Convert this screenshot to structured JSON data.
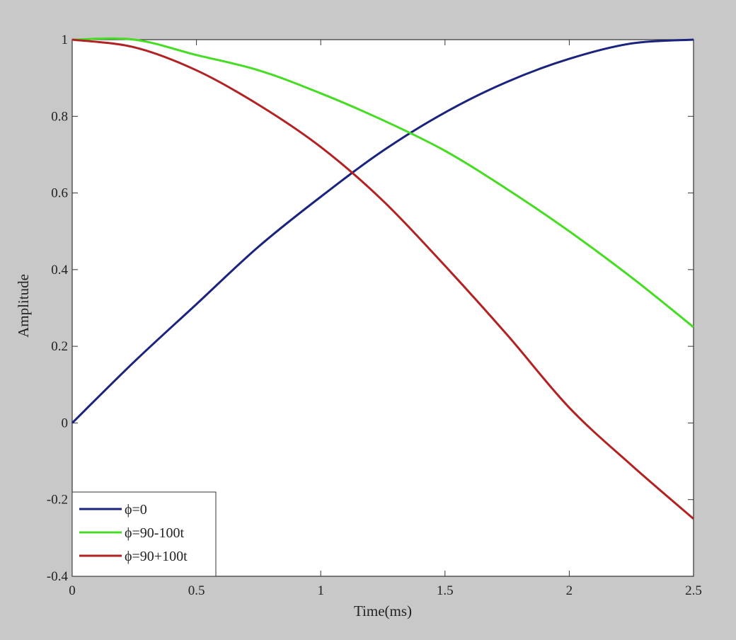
{
  "chart_data": {
    "type": "line",
    "title": "",
    "xlabel": "Time(ms)",
    "ylabel": "Amplitude",
    "xlim": [
      0,
      2.5
    ],
    "ylim": [
      -0.4,
      1
    ],
    "xticks": [
      0,
      0.5,
      1,
      1.5,
      2,
      2.5
    ],
    "xtick_labels": [
      "0",
      "0.5",
      "1",
      "1.5",
      "2",
      "2.5"
    ],
    "yticks": [
      -0.4,
      -0.2,
      0,
      0.2,
      0.4,
      0.6,
      0.8,
      1
    ],
    "ytick_labels": [
      "-0.4",
      "-0.2",
      "0",
      "0.2",
      "0.4",
      "0.6",
      "0.8",
      "1"
    ],
    "grid": false,
    "legend_position": "bottom-left",
    "series": [
      {
        "name": "ϕ=0",
        "color": "#1a237e",
        "x": [
          0,
          0.25,
          0.5,
          0.75,
          1.0,
          1.25,
          1.5,
          1.75,
          2.0,
          2.25,
          2.5
        ],
        "y": [
          0,
          0.16,
          0.31,
          0.46,
          0.59,
          0.71,
          0.81,
          0.89,
          0.95,
          0.99,
          1.0
        ]
      },
      {
        "name": "ϕ=90-100t",
        "color": "#44dd22",
        "x": [
          0,
          0.25,
          0.5,
          0.75,
          1.0,
          1.25,
          1.5,
          1.75,
          2.0,
          2.25,
          2.5
        ],
        "y": [
          1.0,
          1.0,
          0.96,
          0.92,
          0.86,
          0.79,
          0.71,
          0.61,
          0.5,
          0.38,
          0.25
        ]
      },
      {
        "name": "ϕ=90+100t",
        "color": "#b22222",
        "x": [
          0,
          0.25,
          0.5,
          0.75,
          1.0,
          1.25,
          1.5,
          1.75,
          2.0,
          2.25,
          2.5
        ],
        "y": [
          1.0,
          0.98,
          0.92,
          0.83,
          0.72,
          0.58,
          0.41,
          0.23,
          0.04,
          -0.11,
          -0.25
        ]
      }
    ]
  }
}
